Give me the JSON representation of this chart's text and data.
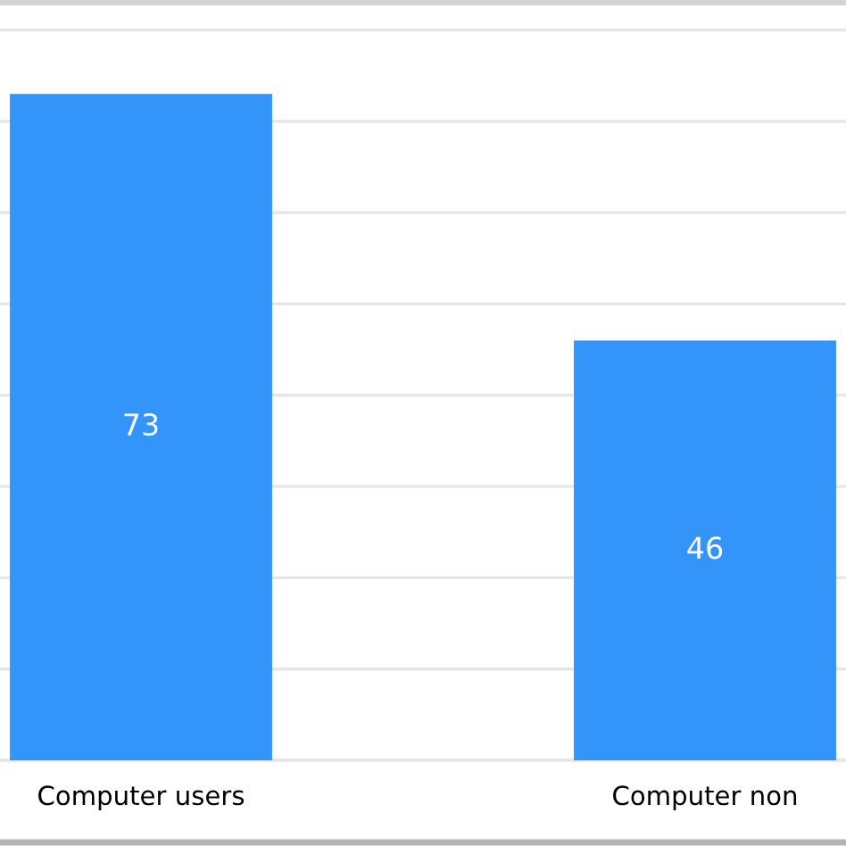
{
  "chart_data": {
    "type": "bar",
    "categories": [
      "Computer users",
      "Computer non"
    ],
    "values": [
      73,
      46
    ],
    "color": "#3395fa",
    "data_labels": true,
    "ylim": [
      0,
      83
    ],
    "yticks": [
      {
        "value": 0,
        "label": null
      },
      {
        "value": 10,
        "label": null
      },
      {
        "value": 20,
        "label": null
      },
      {
        "value": 30,
        "label": null
      },
      {
        "value": 40,
        "label": null
      },
      {
        "value": 50,
        "label": null
      },
      {
        "value": 60,
        "label": null
      },
      {
        "value": 70,
        "label": null
      },
      {
        "value": 80,
        "label": null
      }
    ],
    "grid": "y",
    "tick_labels": "x"
  }
}
